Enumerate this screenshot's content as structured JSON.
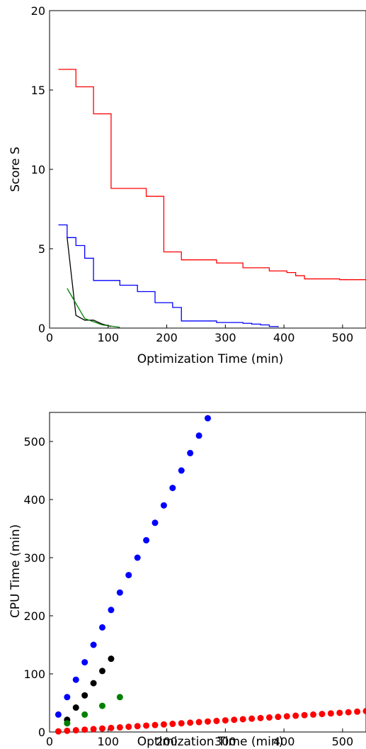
{
  "charts": [
    {
      "id": "score",
      "chart_data": {
        "type": "line",
        "title": "",
        "xlabel": "Optimization Time (min)",
        "ylabel": "Score S",
        "xlim": [
          0,
          540
        ],
        "ylim": [
          0,
          20
        ],
        "xticks": [
          0,
          100,
          200,
          300,
          400,
          500
        ],
        "yticks": [
          0,
          5,
          10,
          15,
          20
        ],
        "grid": false,
        "series": [
          {
            "color": "#ff0000",
            "step": true,
            "x": [
              15,
              30,
              45,
              60,
              75,
              90,
              105,
              120,
              135,
              150,
              165,
              180,
              195,
              210,
              225,
              240,
              255,
              270,
              285,
              300,
              315,
              330,
              345,
              360,
              375,
              390,
              405,
              420,
              435,
              450,
              465,
              480,
              495,
              510,
              525,
              540
            ],
            "y": [
              16.3,
              16.3,
              15.2,
              15.2,
              13.5,
              13.5,
              8.8,
              8.8,
              8.8,
              8.8,
              8.3,
              8.3,
              4.8,
              4.8,
              4.3,
              4.3,
              4.3,
              4.3,
              4.1,
              4.1,
              4.1,
              3.8,
              3.8,
              3.8,
              3.6,
              3.6,
              3.5,
              3.3,
              3.1,
              3.1,
              3.1,
              3.1,
              3.05,
              3.05,
              3.05,
              3.05
            ]
          },
          {
            "color": "#0000ff",
            "step": true,
            "x": [
              15,
              30,
              45,
              60,
              75,
              90,
              105,
              120,
              135,
              150,
              165,
              180,
              195,
              210,
              225,
              240,
              255,
              270,
              285,
              300,
              315,
              330,
              345,
              360,
              375,
              390
            ],
            "y": [
              6.5,
              5.7,
              5.2,
              4.4,
              3.0,
              3.0,
              3.0,
              2.7,
              2.7,
              2.3,
              2.3,
              1.6,
              1.6,
              1.3,
              0.45,
              0.45,
              0.45,
              0.45,
              0.35,
              0.35,
              0.35,
              0.3,
              0.25,
              0.2,
              0.1,
              0.05
            ]
          },
          {
            "color": "#000000",
            "step": false,
            "x": [
              30,
              45,
              60,
              75,
              90,
              105
            ],
            "y": [
              5.7,
              0.8,
              0.5,
              0.5,
              0.25,
              0.1
            ]
          },
          {
            "color": "#008000",
            "step": false,
            "x": [
              30,
              60,
              90,
              120
            ],
            "y": [
              2.5,
              0.6,
              0.2,
              0.05
            ]
          }
        ]
      }
    },
    {
      "id": "cpu",
      "chart_data": {
        "type": "scatter",
        "title": "",
        "xlabel": "Optimization Time (min)",
        "ylabel": "CPU Time (min)",
        "xlim": [
          0,
          540
        ],
        "ylim": [
          0,
          550
        ],
        "xticks": [
          0,
          100,
          200,
          300,
          400,
          500
        ],
        "yticks": [
          0,
          100,
          200,
          300,
          400,
          500
        ],
        "grid": false,
        "series": [
          {
            "color": "#0000ff",
            "x": [
              15,
              30,
              45,
              60,
              75,
              90,
              105,
              120,
              135,
              150,
              165,
              180,
              195,
              210,
              225,
              240,
              255,
              270
            ],
            "y": [
              30,
              60,
              90,
              120,
              150,
              180,
              210,
              240,
              270,
              300,
              330,
              360,
              390,
              420,
              450,
              480,
              510,
              540
            ]
          },
          {
            "color": "#000000",
            "x": [
              30,
              45,
              60,
              75,
              90,
              105
            ],
            "y": [
              21,
              42,
              63,
              84,
              105,
              126
            ]
          },
          {
            "color": "#008000",
            "x": [
              30,
              60,
              90,
              120
            ],
            "y": [
              15,
              30,
              45,
              60
            ]
          },
          {
            "color": "#ff0000",
            "x": [
              15,
              30,
              45,
              60,
              75,
              90,
              105,
              120,
              135,
              150,
              165,
              180,
              195,
              210,
              225,
              240,
              255,
              270,
              285,
              300,
              315,
              330,
              345,
              360,
              375,
              390,
              405,
              420,
              435,
              450,
              465,
              480,
              495,
              510,
              525,
              540
            ],
            "y": [
              1,
              2,
              3,
              4,
              5,
              6,
              7,
              8,
              9,
              10,
              11,
              12,
              13,
              14,
              15,
              16,
              17,
              18,
              19,
              20,
              21,
              22,
              23,
              24,
              25,
              26,
              27,
              28,
              29,
              30,
              31,
              32,
              33,
              34,
              35,
              36
            ]
          }
        ]
      }
    }
  ]
}
